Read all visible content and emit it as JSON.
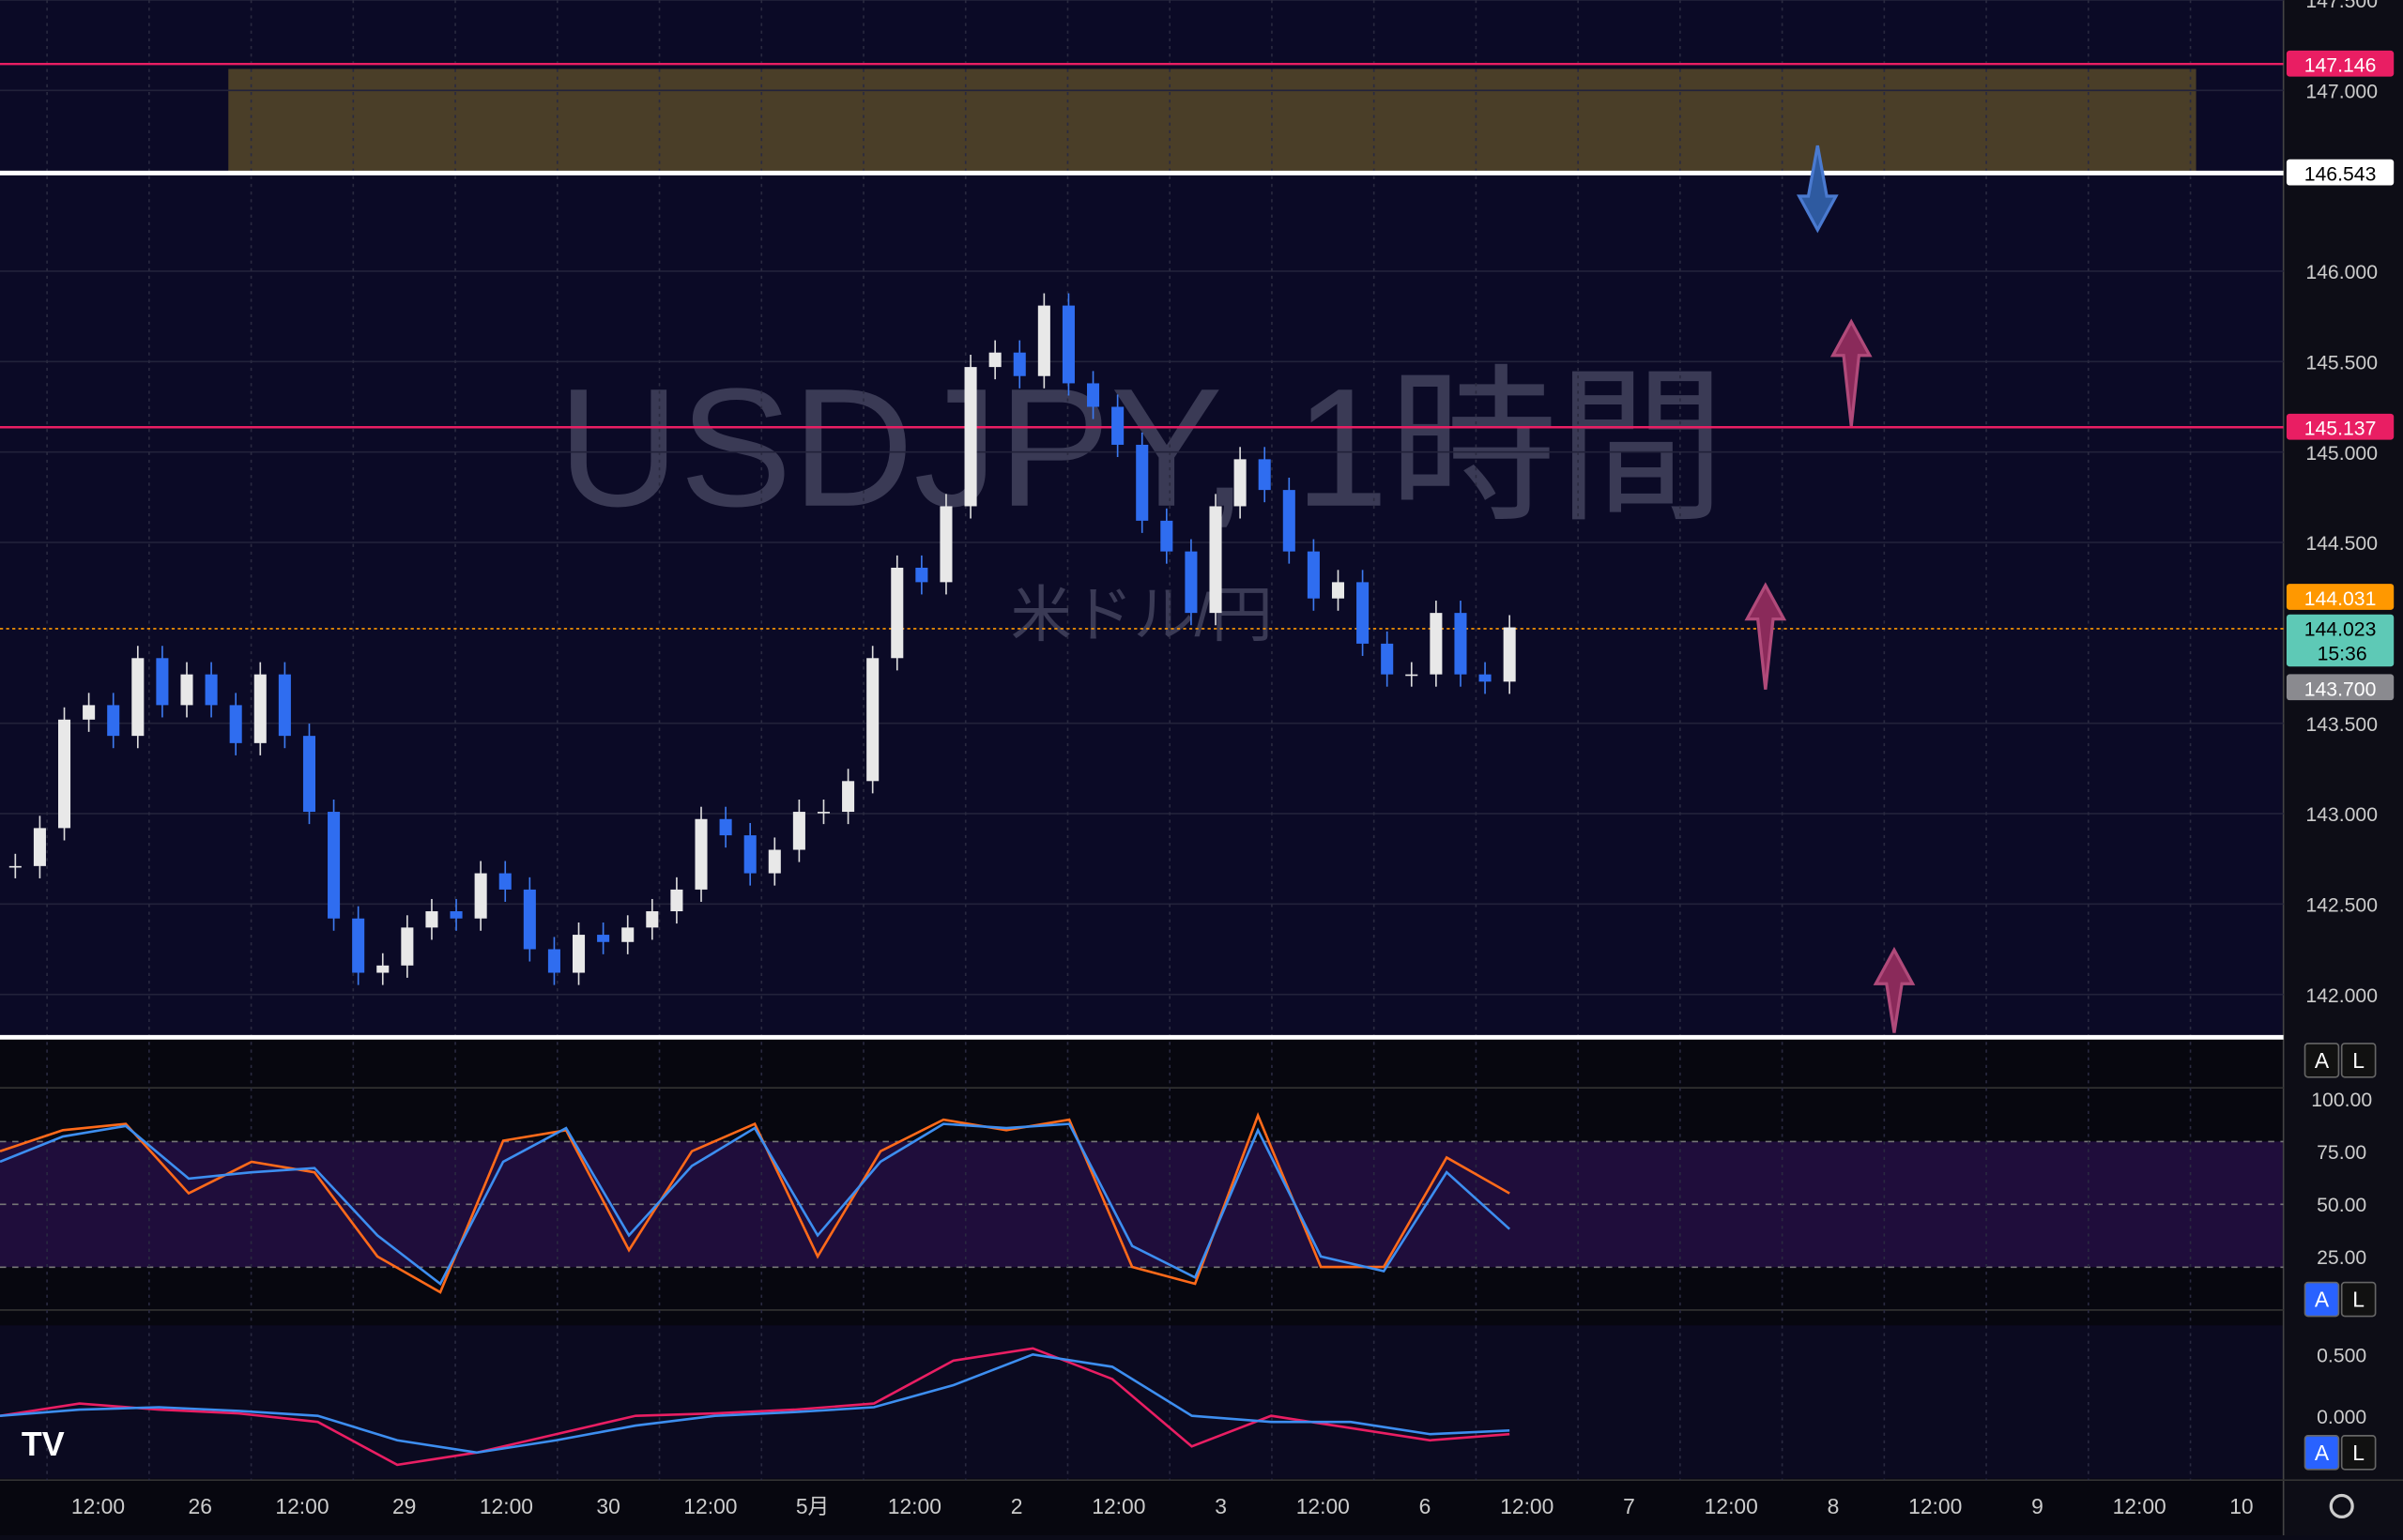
{
  "watermark": {
    "symbol": "USDJPY, 1時間",
    "name": "米ドル/円"
  },
  "price_axis": {
    "ticks": [
      {
        "value": 147.5,
        "label": "147.500"
      },
      {
        "value": 147,
        "label": "147.000"
      },
      {
        "value": 146,
        "label": "146.000"
      },
      {
        "value": 145.5,
        "label": "145.500"
      },
      {
        "value": 145,
        "label": "145.000"
      },
      {
        "value": 144.5,
        "label": "144.500"
      },
      {
        "value": 143.5,
        "label": "143.500"
      },
      {
        "value": 143,
        "label": "143.000"
      },
      {
        "value": 142.5,
        "label": "142.500"
      },
      {
        "value": 142,
        "label": "142.000"
      }
    ]
  },
  "price_tags": [
    {
      "value": 147.146,
      "color": "#e91e63"
    },
    {
      "value": 146.543,
      "color": "#ffffff"
    },
    {
      "value": 145.137,
      "color": "#e91e63"
    },
    {
      "value": 144.031,
      "color": "#ff9800"
    },
    {
      "value": 144.023,
      "color": "#5ec9b6"
    },
    {
      "value": 143.7,
      "label": "143.700",
      "color": "#8a8a8f"
    }
  ],
  "countdown": "15:36",
  "closes": [
    142.71,
    142.92,
    143.52,
    143.6,
    143.43,
    143.86,
    143.6,
    143.77,
    143.6,
    143.39,
    143.77,
    143.43,
    143.01,
    142.42,
    142.12,
    142.16,
    142.37,
    142.46,
    142.42,
    142.67,
    142.58,
    142.25,
    142.12,
    142.33,
    142.29,
    142.37,
    142.46,
    142.58,
    142.97,
    142.88,
    142.67,
    142.8,
    143.01,
    143.01,
    143.18,
    143.86,
    144.36,
    144.28,
    144.7,
    145.47,
    145.55,
    145.42,
    145.81,
    145.38,
    145.25,
    145.04,
    144.62,
    144.45,
    144.11,
    144.7,
    144.96,
    144.79,
    144.45,
    144.19,
    144.28,
    143.94,
    143.77,
    143.77,
    144.11,
    143.77,
    143.73,
    144.03
  ],
  "time_axis": {
    "labels": [
      "12:00",
      "26",
      "12:00",
      "29",
      "12:00",
      "30",
      "12:00",
      "5月",
      "12:00",
      "2",
      "12:00",
      "3",
      "12:00",
      "6",
      "12:00",
      "7",
      "12:00",
      "8",
      "12:00",
      "9",
      "12:00",
      "10"
    ]
  },
  "stochastic": {
    "ticks": [
      {
        "value": 100,
        "label": "100.00"
      },
      {
        "value": 75,
        "label": "75.00"
      },
      {
        "value": 50,
        "label": "50.00"
      },
      {
        "value": 25,
        "label": "25.00"
      }
    ],
    "k": [
      75,
      85,
      88,
      55,
      70,
      65,
      25,
      8,
      80,
      85,
      28,
      75,
      88,
      25,
      75,
      90,
      85,
      90,
      20,
      12,
      92,
      20,
      20,
      72,
      55
    ],
    "d": [
      70,
      82,
      87,
      62,
      65,
      67,
      35,
      12,
      70,
      86,
      35,
      68,
      86,
      35,
      70,
      88,
      86,
      88,
      30,
      15,
      85,
      25,
      18,
      65,
      38
    ]
  },
  "macd": {
    "ticks": [
      {
        "value": 0.5,
        "label": "0.500"
      },
      {
        "value": 0,
        "label": "0.000"
      }
    ],
    "macd": [
      0,
      0.1,
      0.05,
      0.02,
      -0.05,
      -0.4,
      -0.3,
      -0.15,
      0,
      0.02,
      0.05,
      0.1,
      0.45,
      0.55,
      0.3,
      -0.25,
      0,
      -0.1,
      -0.2,
      -0.15
    ],
    "signal": [
      0,
      0.05,
      0.07,
      0.04,
      0,
      -0.2,
      -0.3,
      -0.2,
      -0.08,
      0,
      0.03,
      0.07,
      0.25,
      0.5,
      0.4,
      0,
      -0.05,
      -0.05,
      -0.15,
      -0.12
    ]
  },
  "buttons": [
    "A",
    "L"
  ]
}
